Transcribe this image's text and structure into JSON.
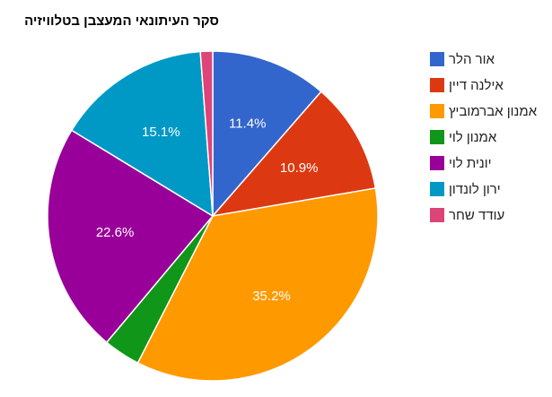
{
  "chart_data": {
    "type": "pie",
    "title": "סקר העיתונאי המעצבן בטלוויזיה",
    "legend_position": "right",
    "slices": [
      {
        "name": "אור הלר",
        "value": 11.4,
        "label": "11.4%",
        "color": "#3366cc"
      },
      {
        "name": "אילנה דיין",
        "value": 10.9,
        "label": "10.9%",
        "color": "#dc3912"
      },
      {
        "name": "אמנון אברמוביץ",
        "value": 35.2,
        "label": "35.2%",
        "color": "#ff9900"
      },
      {
        "name": "אמנון לוי",
        "value": 3.6,
        "label": "",
        "color": "#109618"
      },
      {
        "name": "יונית לוי",
        "value": 22.6,
        "label": "22.6%",
        "color": "#990099"
      },
      {
        "name": "ירון לונדון",
        "value": 15.1,
        "label": "15.1%",
        "color": "#0099c6"
      },
      {
        "name": "עודד שחר",
        "value": 1.2,
        "label": "",
        "color": "#dd4477"
      }
    ]
  }
}
